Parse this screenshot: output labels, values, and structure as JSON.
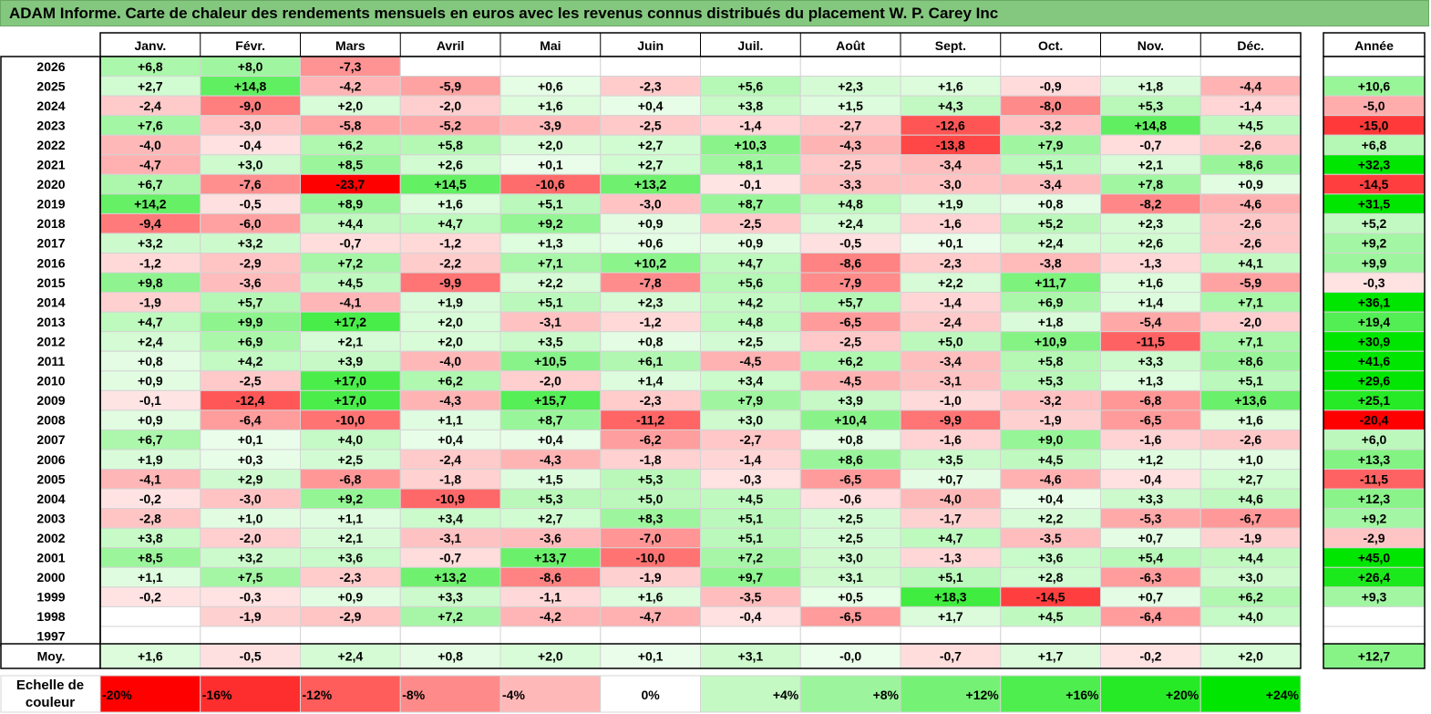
{
  "title": "ADAM Informe. Carte de chaleur des rendements mensuels en euros avec les revenus connus distribués du placement W. P. Carey Inc",
  "chart_data": {
    "type": "heatmap",
    "title": "ADAM Informe. Carte de chaleur des rendements mensuels en euros avec les revenus connus distribués du placement W. P. Carey Inc",
    "columns": [
      "Janv.",
      "Févr.",
      "Mars",
      "Avril",
      "Mai",
      "Juin",
      "Juil.",
      "Août",
      "Sept.",
      "Oct.",
      "Nov.",
      "Déc."
    ],
    "year_header": "Année",
    "rows": [
      {
        "year": "2026",
        "values": [
          6.8,
          8.0,
          -7.3,
          null,
          null,
          null,
          null,
          null,
          null,
          null,
          null,
          null
        ],
        "annual": null
      },
      {
        "year": "2025",
        "values": [
          2.7,
          14.8,
          -4.2,
          -5.9,
          0.6,
          -2.3,
          5.6,
          2.3,
          1.6,
          -0.9,
          1.8,
          -4.4
        ],
        "annual": 10.6
      },
      {
        "year": "2024",
        "values": [
          -2.4,
          -9.0,
          2.0,
          -2.0,
          1.6,
          0.4,
          3.8,
          1.5,
          4.3,
          -8.0,
          5.3,
          -1.4
        ],
        "annual": -5.0
      },
      {
        "year": "2023",
        "values": [
          7.6,
          -3.0,
          -5.8,
          -5.2,
          -3.9,
          -2.5,
          -1.4,
          -2.7,
          -12.6,
          -3.2,
          14.8,
          4.5
        ],
        "annual": -15.0
      },
      {
        "year": "2022",
        "values": [
          -4.0,
          -0.4,
          6.2,
          5.8,
          2.0,
          2.7,
          10.3,
          -4.3,
          -13.8,
          7.9,
          -0.7,
          -2.6
        ],
        "annual": 6.8
      },
      {
        "year": "2021",
        "values": [
          -4.7,
          3.0,
          8.5,
          2.6,
          0.1,
          2.7,
          8.1,
          -2.5,
          -3.4,
          5.1,
          2.1,
          8.6
        ],
        "annual": 32.3
      },
      {
        "year": "2020",
        "values": [
          6.7,
          -7.6,
          -23.7,
          14.5,
          -10.6,
          13.2,
          -0.1,
          -3.3,
          -3.0,
          -3.4,
          7.8,
          0.9
        ],
        "annual": -14.5
      },
      {
        "year": "2019",
        "values": [
          14.2,
          -0.5,
          8.9,
          1.6,
          5.1,
          -3.0,
          8.7,
          4.8,
          1.9,
          0.8,
          -8.2,
          -4.6
        ],
        "annual": 31.5
      },
      {
        "year": "2018",
        "values": [
          -9.4,
          -6.0,
          4.4,
          4.7,
          9.2,
          0.9,
          -2.5,
          2.4,
          -1.6,
          5.2,
          2.3,
          -2.6
        ],
        "annual": 5.2
      },
      {
        "year": "2017",
        "values": [
          3.2,
          3.2,
          -0.7,
          -1.2,
          1.3,
          0.6,
          0.9,
          -0.5,
          0.1,
          2.4,
          2.6,
          -2.6
        ],
        "annual": 9.2
      },
      {
        "year": "2016",
        "values": [
          -1.2,
          -2.9,
          7.2,
          -2.2,
          7.1,
          10.2,
          4.7,
          -8.6,
          -2.3,
          -3.8,
          -1.3,
          4.1
        ],
        "annual": 9.9
      },
      {
        "year": "2015",
        "values": [
          9.8,
          -3.6,
          4.5,
          -9.9,
          2.2,
          -7.8,
          5.6,
          -7.9,
          2.2,
          11.7,
          1.6,
          -5.9
        ],
        "annual": -0.3
      },
      {
        "year": "2014",
        "values": [
          -1.9,
          5.7,
          -4.1,
          1.9,
          5.1,
          2.3,
          4.2,
          5.7,
          -1.4,
          6.9,
          1.4,
          7.1
        ],
        "annual": 36.1
      },
      {
        "year": "2013",
        "values": [
          4.7,
          9.9,
          17.2,
          2.0,
          -3.1,
          -1.2,
          4.8,
          -6.5,
          -2.4,
          1.8,
          -5.4,
          -2.0
        ],
        "annual": 19.4
      },
      {
        "year": "2012",
        "values": [
          2.4,
          6.9,
          2.1,
          2.0,
          3.5,
          0.8,
          2.5,
          -2.5,
          5.0,
          10.9,
          -11.5,
          7.1
        ],
        "annual": 30.9
      },
      {
        "year": "2011",
        "values": [
          0.8,
          4.2,
          3.9,
          -4.0,
          10.5,
          6.1,
          -4.5,
          6.2,
          -3.4,
          5.8,
          3.3,
          8.6
        ],
        "annual": 41.6
      },
      {
        "year": "2010",
        "values": [
          0.9,
          -2.5,
          17.0,
          6.2,
          -2.0,
          1.4,
          3.4,
          -4.5,
          -3.1,
          5.3,
          1.3,
          5.1
        ],
        "annual": 29.6
      },
      {
        "year": "2009",
        "values": [
          -0.1,
          -12.4,
          17.0,
          -4.3,
          15.7,
          -2.3,
          7.9,
          3.9,
          -1.0,
          -3.2,
          -6.8,
          13.6
        ],
        "annual": 25.1
      },
      {
        "year": "2008",
        "values": [
          0.9,
          -6.4,
          -10.0,
          1.1,
          8.7,
          -11.2,
          3.0,
          10.4,
          -9.9,
          -1.9,
          -6.5,
          1.6
        ],
        "annual": -20.4
      },
      {
        "year": "2007",
        "values": [
          6.7,
          0.1,
          4.0,
          0.4,
          0.4,
          -6.2,
          -2.7,
          0.8,
          -1.6,
          9.0,
          -1.6,
          -2.6
        ],
        "annual": 6.0
      },
      {
        "year": "2006",
        "values": [
          1.9,
          0.3,
          2.5,
          -2.4,
          -4.3,
          -1.8,
          -1.4,
          8.6,
          3.5,
          4.5,
          1.2,
          1.0
        ],
        "annual": 13.3
      },
      {
        "year": "2005",
        "values": [
          -4.1,
          2.9,
          -6.8,
          -1.8,
          1.5,
          5.3,
          -0.3,
          -6.5,
          0.7,
          -4.6,
          -0.4,
          2.7
        ],
        "annual": -11.5
      },
      {
        "year": "2004",
        "values": [
          -0.2,
          -3.0,
          9.2,
          -10.9,
          5.3,
          5.0,
          4.5,
          -0.6,
          -4.0,
          0.4,
          3.3,
          4.6
        ],
        "annual": 12.3
      },
      {
        "year": "2003",
        "values": [
          -2.8,
          1.0,
          1.1,
          3.4,
          2.7,
          8.3,
          5.1,
          2.5,
          -1.7,
          2.2,
          -5.3,
          -6.7
        ],
        "annual": 9.2
      },
      {
        "year": "2002",
        "values": [
          3.8,
          -2.0,
          2.1,
          -3.1,
          -3.6,
          -7.0,
          5.1,
          2.5,
          4.7,
          -3.5,
          0.7,
          -1.9
        ],
        "annual": -2.9
      },
      {
        "year": "2001",
        "values": [
          8.5,
          3.2,
          3.6,
          -0.7,
          13.7,
          -10.0,
          7.2,
          3.0,
          -1.3,
          3.6,
          5.4,
          4.4
        ],
        "annual": 45.0
      },
      {
        "year": "2000",
        "values": [
          1.1,
          7.5,
          -2.3,
          13.2,
          -8.6,
          -1.9,
          9.7,
          3.1,
          5.1,
          2.8,
          -6.3,
          3.0
        ],
        "annual": 26.4
      },
      {
        "year": "1999",
        "values": [
          -0.2,
          -0.3,
          0.9,
          3.3,
          -1.1,
          1.6,
          -3.5,
          0.5,
          18.3,
          -14.5,
          0.7,
          6.2
        ],
        "annual": 9.3
      },
      {
        "year": "1998",
        "values": [
          null,
          -1.9,
          -2.9,
          7.2,
          -4.2,
          -4.7,
          -0.4,
          -6.5,
          1.7,
          4.5,
          -6.4,
          4.0
        ],
        "annual": null
      },
      {
        "year": "1997",
        "values": [
          null,
          null,
          null,
          null,
          null,
          null,
          null,
          null,
          null,
          null,
          null,
          null
        ],
        "annual": null
      }
    ],
    "average": {
      "label": "Moy.",
      "values": [
        1.6,
        -0.5,
        2.4,
        0.8,
        2.0,
        0.1,
        3.1,
        -0.0,
        -0.7,
        1.7,
        -0.2,
        2.0
      ],
      "annual": 12.7
    },
    "scale": {
      "label": "Echelle de couleur",
      "steps": [
        "-20%",
        "-16%",
        "-12%",
        "-8%",
        "-4%",
        "0%",
        "+4%",
        "+8%",
        "+12%",
        "+16%",
        "+20%",
        "+24%"
      ]
    },
    "colors": {
      "negative": "#ff0000",
      "neutral": "#ffffff",
      "positive": "#00e000",
      "title_bar": "#84c77f"
    }
  }
}
